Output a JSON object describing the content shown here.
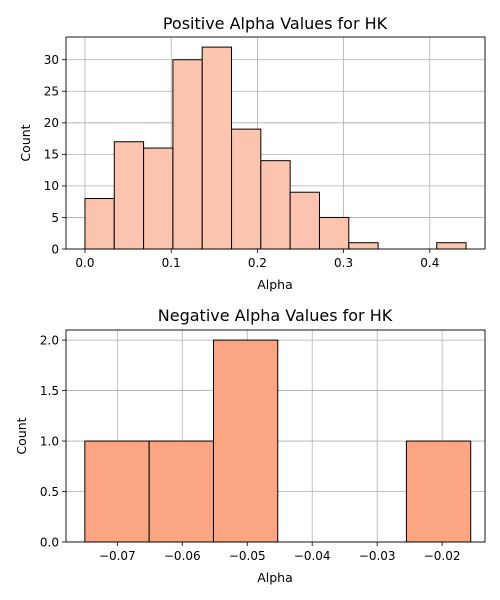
{
  "chart_data": [
    {
      "type": "histogram",
      "title": "Positive Alpha Values for HK",
      "xlabel": "Alpha",
      "ylabel": "Count",
      "bar_color": "#fcc4ae",
      "edge_color": "#000000",
      "xlim": [
        -0.022,
        0.464
      ],
      "ylim": [
        0,
        33.6
      ],
      "xticks": [
        {
          "value": 0.0,
          "label": "0.0"
        },
        {
          "value": 0.1,
          "label": "0.1"
        },
        {
          "value": 0.2,
          "label": "0.2"
        },
        {
          "value": 0.3,
          "label": "0.3"
        },
        {
          "value": 0.4,
          "label": "0.4"
        }
      ],
      "yticks": [
        {
          "value": 0,
          "label": "0"
        },
        {
          "value": 5,
          "label": "5"
        },
        {
          "value": 10,
          "label": "10"
        },
        {
          "value": 15,
          "label": "15"
        },
        {
          "value": 20,
          "label": "20"
        },
        {
          "value": 25,
          "label": "25"
        },
        {
          "value": 30,
          "label": "30"
        }
      ],
      "grid": true,
      "bins": [
        {
          "x0": 0.0,
          "x1": 0.034,
          "count": 8
        },
        {
          "x0": 0.034,
          "x1": 0.068,
          "count": 17
        },
        {
          "x0": 0.068,
          "x1": 0.102,
          "count": 16
        },
        {
          "x0": 0.102,
          "x1": 0.136,
          "count": 30
        },
        {
          "x0": 0.136,
          "x1": 0.17,
          "count": 32
        },
        {
          "x0": 0.17,
          "x1": 0.204,
          "count": 19
        },
        {
          "x0": 0.204,
          "x1": 0.238,
          "count": 14
        },
        {
          "x0": 0.238,
          "x1": 0.272,
          "count": 9
        },
        {
          "x0": 0.272,
          "x1": 0.306,
          "count": 5
        },
        {
          "x0": 0.306,
          "x1": 0.34,
          "count": 1
        },
        {
          "x0": 0.34,
          "x1": 0.374,
          "count": 0
        },
        {
          "x0": 0.374,
          "x1": 0.408,
          "count": 0
        },
        {
          "x0": 0.408,
          "x1": 0.442,
          "count": 1
        }
      ]
    },
    {
      "type": "histogram",
      "title": "Negative Alpha Values for HK",
      "xlabel": "Alpha",
      "ylabel": "Count",
      "bar_color": "#fca582",
      "edge_color": "#000000",
      "xlim": [
        -0.0779,
        -0.0134
      ],
      "ylim": [
        0,
        2.1
      ],
      "xticks": [
        {
          "value": -0.07,
          "label": "−0.07"
        },
        {
          "value": -0.06,
          "label": "−0.06"
        },
        {
          "value": -0.05,
          "label": "−0.05"
        },
        {
          "value": -0.04,
          "label": "−0.04"
        },
        {
          "value": -0.03,
          "label": "−0.03"
        },
        {
          "value": -0.02,
          "label": "−0.02"
        }
      ],
      "yticks": [
        {
          "value": 0,
          "label": "0.0"
        },
        {
          "value": 0.5,
          "label": "0.5"
        },
        {
          "value": 1.0,
          "label": "1.0"
        },
        {
          "value": 1.5,
          "label": "1.5"
        },
        {
          "value": 2.0,
          "label": "2.0"
        }
      ],
      "grid": true,
      "bins": [
        {
          "x0": -0.075,
          "x1": -0.0651,
          "count": 1
        },
        {
          "x0": -0.0651,
          "x1": -0.0552,
          "count": 1
        },
        {
          "x0": -0.0552,
          "x1": -0.0453,
          "count": 2
        },
        {
          "x0": -0.0453,
          "x1": -0.0354,
          "count": 0
        },
        {
          "x0": -0.0354,
          "x1": -0.0255,
          "count": 0
        },
        {
          "x0": -0.0255,
          "x1": -0.0156,
          "count": 1
        }
      ]
    }
  ]
}
